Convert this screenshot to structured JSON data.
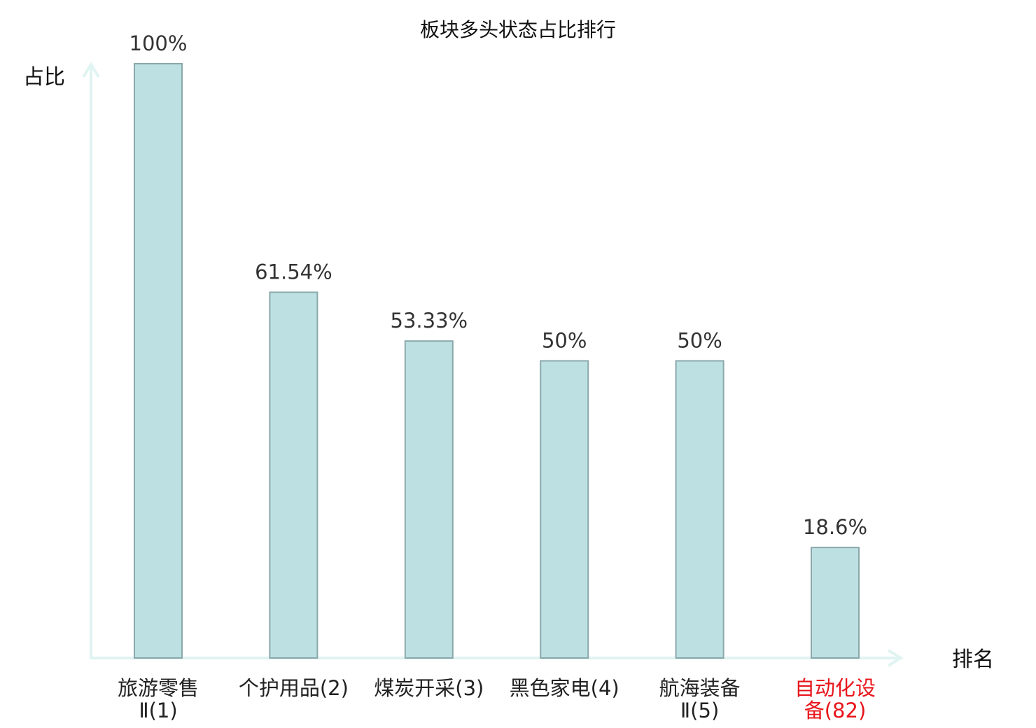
{
  "chart_data": {
    "type": "bar",
    "title": "板块多头状态占比排行",
    "ylabel": "占比",
    "xlabel": "排名",
    "ylim": [
      0,
      100
    ],
    "grid": false,
    "categories": [
      {
        "lines": [
          "旅游零售",
          "Ⅱ(1)"
        ],
        "highlight": false
      },
      {
        "lines": [
          "个护用品(2)"
        ],
        "highlight": false
      },
      {
        "lines": [
          "煤炭开采(3)"
        ],
        "highlight": false
      },
      {
        "lines": [
          "黑色家电(4)"
        ],
        "highlight": false
      },
      {
        "lines": [
          "航海装备",
          "Ⅱ(5)"
        ],
        "highlight": false
      },
      {
        "lines": [
          "自动化设",
          "备(82)"
        ],
        "highlight": true
      }
    ],
    "values": [
      100,
      61.54,
      53.33,
      50,
      50,
      18.6
    ],
    "value_labels": [
      "100%",
      "61.54%",
      "53.33%",
      "50%",
      "50%",
      "18.6%"
    ],
    "colors": {
      "bar_fill": "#bde0e3",
      "bar_stroke": "#8aa8ab",
      "axis": "#e0f4f1",
      "highlight_label": "#e8151b"
    }
  }
}
